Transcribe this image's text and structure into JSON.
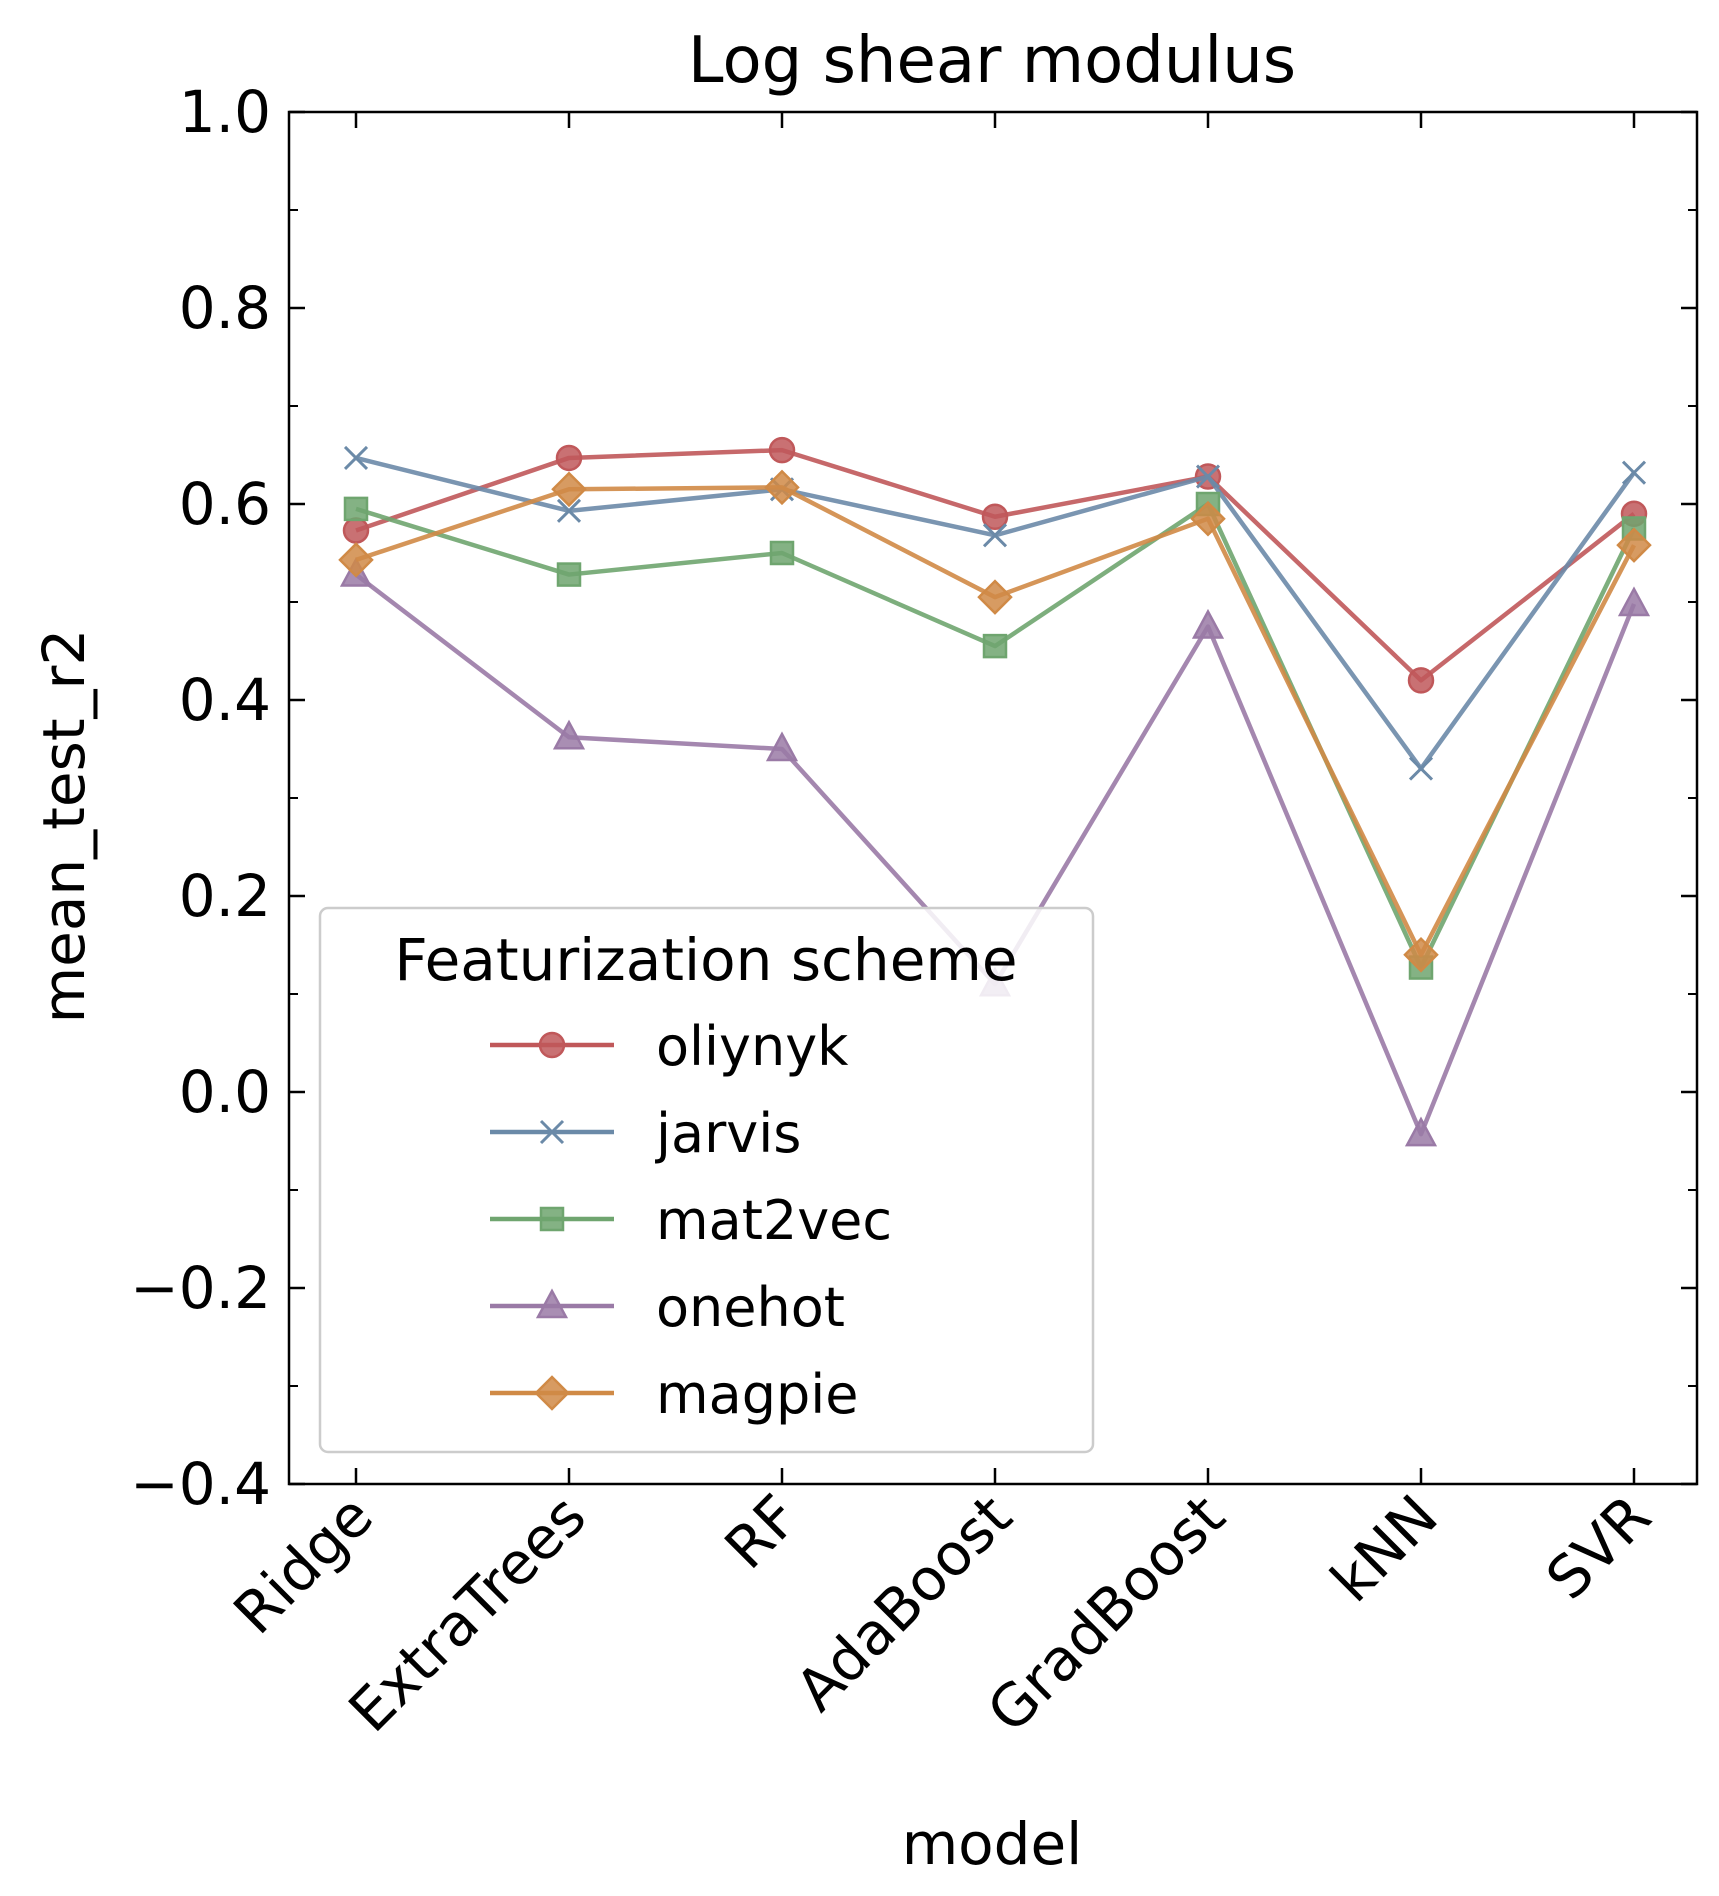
{
  "chart_data": {
    "type": "line",
    "title": "Log shear modulus",
    "xlabel": "model",
    "ylabel": "mean_test_r2",
    "categories": [
      "Ridge",
      "ExtraTrees",
      "RF",
      "AdaBoost",
      "GradBoost",
      "kNN",
      "SVR"
    ],
    "ylim": [
      -0.4,
      1.0
    ],
    "yticks": [
      -0.4,
      -0.2,
      0.0,
      0.2,
      0.4,
      0.6,
      0.8,
      1.0
    ],
    "ytick_labels": [
      "−0.4",
      "−0.2",
      "0.0",
      "0.2",
      "0.4",
      "0.6",
      "0.8",
      "1.0"
    ],
    "grid": false,
    "legend": {
      "title": "Featurization scheme",
      "placement": "lower-left"
    },
    "series": [
      {
        "name": "oliynyk",
        "marker": "circle",
        "color": "#c0585a",
        "values": [
          0.573,
          0.647,
          0.655,
          0.587,
          0.628,
          0.42,
          0.59
        ]
      },
      {
        "name": "jarvis",
        "marker": "x",
        "color": "#6b8aa8",
        "values": [
          0.647,
          0.593,
          0.615,
          0.568,
          0.628,
          0.33,
          0.632
        ]
      },
      {
        "name": "mat2vec",
        "marker": "square",
        "color": "#6fa56f",
        "values": [
          0.595,
          0.528,
          0.55,
          0.455,
          0.6,
          0.127,
          0.575
        ]
      },
      {
        "name": "onehot",
        "marker": "triangle",
        "color": "#9a7aa6",
        "values": [
          0.528,
          0.362,
          0.35,
          0.11,
          0.475,
          -0.043,
          0.498
        ]
      },
      {
        "name": "magpie",
        "marker": "diamond",
        "color": "#d08a46",
        "values": [
          0.543,
          0.615,
          0.617,
          0.505,
          0.585,
          0.14,
          0.558
        ]
      }
    ]
  }
}
